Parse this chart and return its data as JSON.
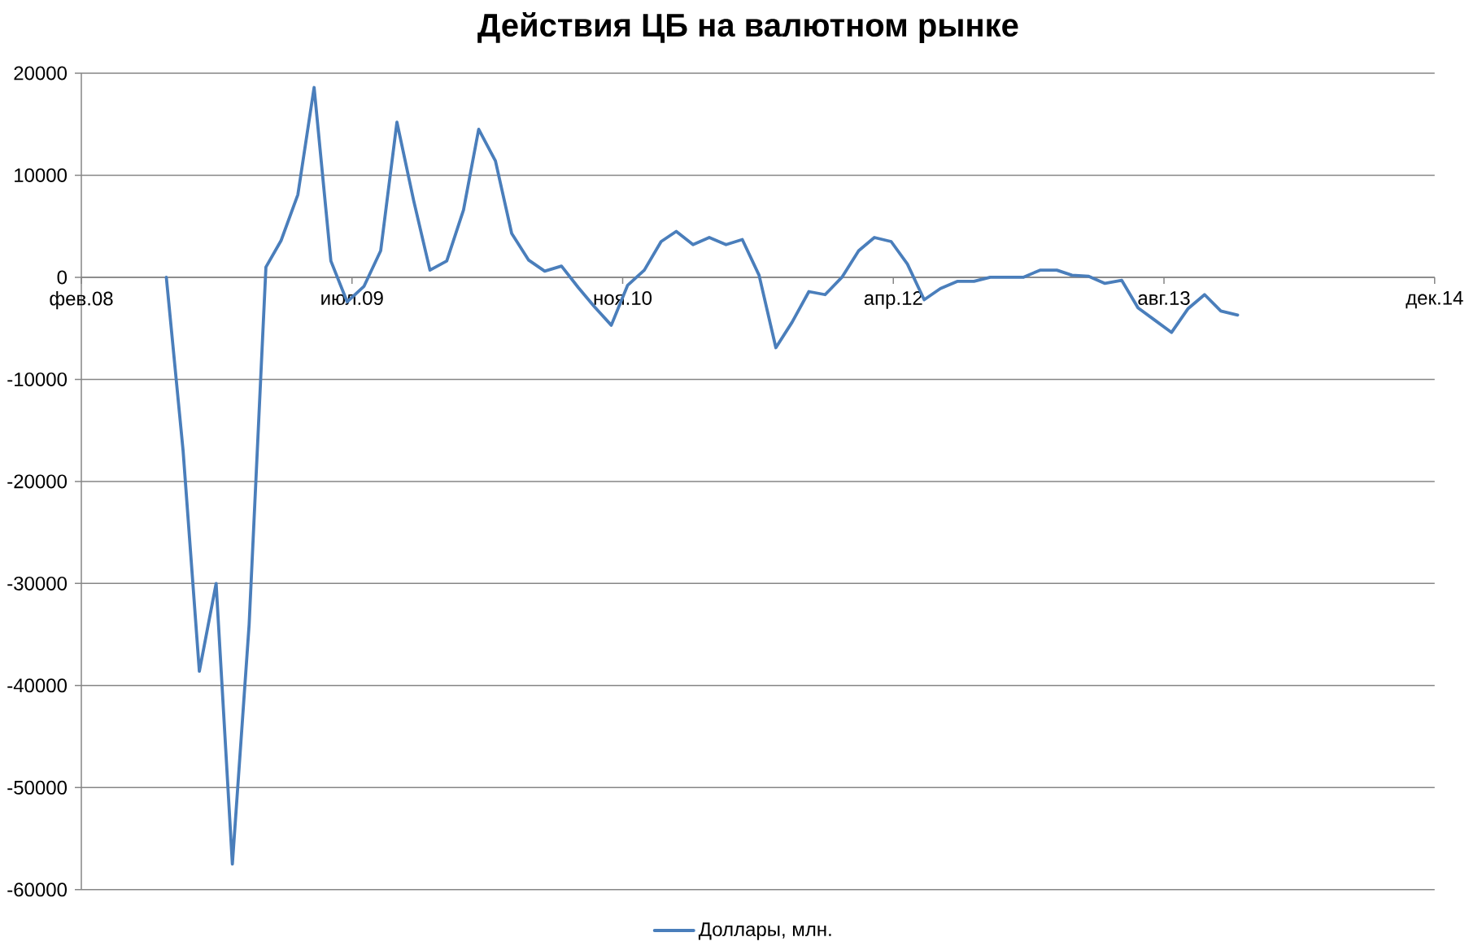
{
  "chart_data": {
    "type": "line",
    "title": "Действия ЦБ на валютном рынке",
    "x": [
      "2008-08",
      "2008-09",
      "2008-10",
      "2008-11",
      "2008-12",
      "2009-01",
      "2009-02",
      "2009-03",
      "2009-04",
      "2009-05",
      "2009-06",
      "2009-07",
      "2009-08",
      "2009-09",
      "2009-10",
      "2009-11",
      "2009-12",
      "2010-01",
      "2010-02",
      "2010-03",
      "2010-04",
      "2010-05",
      "2010-06",
      "2010-07",
      "2010-08",
      "2010-09",
      "2010-10",
      "2010-11",
      "2010-12",
      "2011-01",
      "2011-02",
      "2011-03",
      "2011-04",
      "2011-05",
      "2011-06",
      "2011-07",
      "2011-08",
      "2011-09",
      "2011-10",
      "2011-11",
      "2011-12",
      "2012-01",
      "2012-02",
      "2012-03",
      "2012-04",
      "2012-05",
      "2012-06",
      "2012-07",
      "2012-08",
      "2012-09",
      "2012-10",
      "2012-11",
      "2012-12",
      "2013-01",
      "2013-02",
      "2013-03",
      "2013-04",
      "2013-05",
      "2013-06",
      "2013-07",
      "2013-08",
      "2013-09",
      "2013-10",
      "2013-11",
      "2013-12",
      "2014-01"
    ],
    "series": [
      {
        "name": "Доллары, млн.",
        "color": "#4a7ebb",
        "values": [
          0,
          -17000,
          -38600,
          -30000,
          -57500,
          -34000,
          1000,
          3600,
          8100,
          18600,
          1600,
          -2400,
          -900,
          2600,
          15200,
          7500,
          700,
          1600,
          6600,
          14500,
          11400,
          4300,
          1700,
          600,
          1100,
          -1000,
          -2900,
          -4700,
          -800,
          700,
          3500,
          4500,
          3200,
          3900,
          3200,
          3700,
          200,
          -6900,
          -4400,
          -1400,
          -1700,
          0,
          2600,
          3900,
          3500,
          1300,
          -2200,
          -1100,
          -400,
          -400,
          0,
          0,
          0,
          700,
          700,
          200,
          100,
          -600,
          -300,
          -3000,
          -4200,
          -5400,
          -3100,
          -1700,
          -3300,
          -3700
        ]
      }
    ],
    "xlim": [
      "2008-02-26",
      "2014-12-31"
    ],
    "xticks": [
      {
        "value": "2008-02-26",
        "label": "фев.08"
      },
      {
        "value": "2009-07-10",
        "label": "июл.09"
      },
      {
        "value": "2010-11-22",
        "label": "ноя.10"
      },
      {
        "value": "2012-04-05",
        "label": "апр.12"
      },
      {
        "value": "2013-08-18",
        "label": "авг.13"
      },
      {
        "value": "2014-12-31",
        "label": "дек.14"
      }
    ],
    "ylim": [
      -60000,
      20000
    ],
    "yticks": [
      -60000,
      -50000,
      -40000,
      -30000,
      -20000,
      -10000,
      0,
      10000,
      20000
    ],
    "grid": "y",
    "legend": "bottom",
    "line_style": "solid"
  }
}
